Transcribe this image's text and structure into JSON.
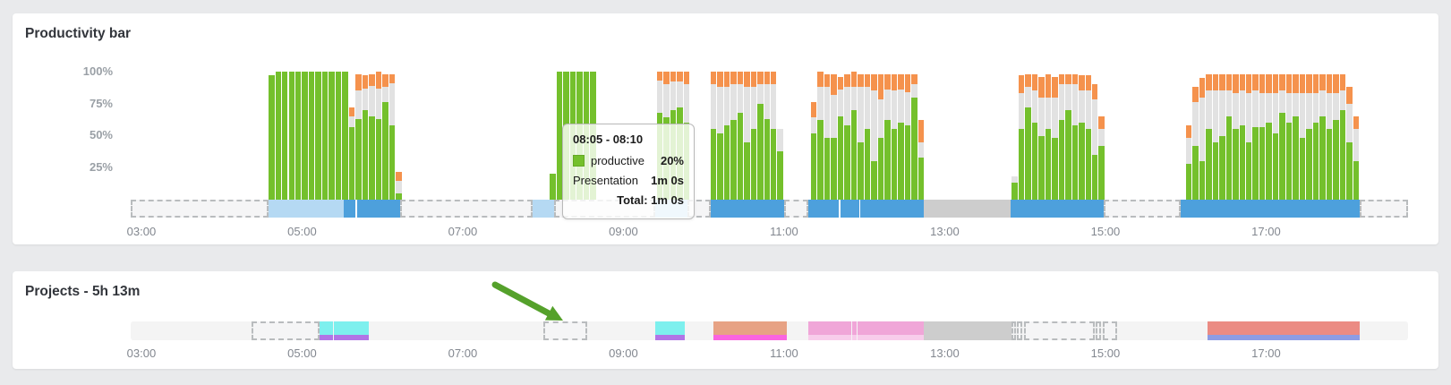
{
  "page_bg": "#e9eaec",
  "colors": {
    "productive_green": "#74c02c",
    "neutral_gray": "#e2e2e2",
    "distracting_orange": "#f5924d",
    "strip_light_blue": "#b5d9f3",
    "strip_blue": "#4da0dc",
    "strip_gray": "#cdcdcd",
    "cyan": "#7df0ee",
    "purple": "#b175e6",
    "salmon": "#e7a284",
    "magenta": "#fa64e0",
    "pink": "#f0a6d8",
    "pink_light": "#f8cdeb",
    "red": "#eb8b83",
    "periwinkle": "#8d9ce4",
    "arrow_green": "#55a12b"
  },
  "productivity_panel": {
    "title": "Productivity bar",
    "y_ticks": [
      "100%",
      "75%",
      "50%",
      "25%"
    ],
    "tooltip": {
      "title": "08:05 - 08:10",
      "productive_label": "productive",
      "productive_value": "20%",
      "app_label": "Presentation",
      "app_value": "1m 0s",
      "total_text": "Total: 1m 0s"
    }
  },
  "projects_panel": {
    "title": "Projects - 5h 13m"
  },
  "chart_data": [
    {
      "type": "bar",
      "title": "Productivity bar",
      "x_range": [
        "02:52",
        "18:46"
      ],
      "slot_minutes": 5,
      "ylim": [
        0,
        100
      ],
      "y_ticks": [
        "100%",
        "75%",
        "50%",
        "25%"
      ],
      "x_ticks": [
        "03:00",
        "05:00",
        "07:00",
        "09:00",
        "11:00",
        "13:00",
        "15:00",
        "17:00"
      ],
      "series_colors": {
        "productive": "#74c02c",
        "neutral": "#e2e2e2",
        "distracting": "#f5924d"
      },
      "bars": [
        [
          "04:35",
          97,
          0,
          0
        ],
        [
          "04:40",
          100,
          0,
          0
        ],
        [
          "04:45",
          100,
          0,
          0
        ],
        [
          "04:50",
          100,
          0,
          0
        ],
        [
          "04:55",
          100,
          0,
          0
        ],
        [
          "05:00",
          100,
          0,
          0
        ],
        [
          "05:05",
          100,
          0,
          0
        ],
        [
          "05:10",
          100,
          0,
          0
        ],
        [
          "05:15",
          100,
          0,
          0
        ],
        [
          "05:20",
          100,
          0,
          0
        ],
        [
          "05:25",
          100,
          0,
          0
        ],
        [
          "05:30",
          100,
          0,
          0
        ],
        [
          "05:35",
          57,
          8,
          7
        ],
        [
          "05:40",
          63,
          22,
          13
        ],
        [
          "05:45",
          70,
          17,
          10
        ],
        [
          "05:50",
          65,
          24,
          9
        ],
        [
          "05:55",
          63,
          24,
          13
        ],
        [
          "06:00",
          76,
          12,
          10
        ],
        [
          "06:05",
          58,
          33,
          7
        ],
        [
          "06:10",
          5,
          10,
          7
        ],
        [
          "08:05",
          20,
          0,
          0
        ],
        [
          "08:10",
          100,
          0,
          0
        ],
        [
          "08:15",
          100,
          0,
          0
        ],
        [
          "08:20",
          100,
          0,
          0
        ],
        [
          "08:25",
          100,
          0,
          0
        ],
        [
          "08:30",
          100,
          0,
          0
        ],
        [
          "08:35",
          100,
          0,
          0
        ],
        [
          "09:25",
          68,
          25,
          7
        ],
        [
          "09:30",
          64,
          26,
          10
        ],
        [
          "09:35",
          70,
          22,
          8
        ],
        [
          "09:40",
          72,
          20,
          8
        ],
        [
          "09:45",
          60,
          30,
          10
        ],
        [
          "10:05",
          55,
          35,
          10
        ],
        [
          "10:10",
          52,
          36,
          12
        ],
        [
          "10:15",
          58,
          30,
          12
        ],
        [
          "10:20",
          62,
          28,
          10
        ],
        [
          "10:25",
          68,
          22,
          10
        ],
        [
          "10:30",
          45,
          43,
          12
        ],
        [
          "10:35",
          55,
          33,
          12
        ],
        [
          "10:40",
          75,
          15,
          10
        ],
        [
          "10:45",
          63,
          27,
          10
        ],
        [
          "10:50",
          55,
          35,
          10
        ],
        [
          "10:55",
          38,
          17,
          0
        ],
        [
          "11:20",
          52,
          12,
          12
        ],
        [
          "11:25",
          62,
          26,
          12
        ],
        [
          "11:30",
          48,
          40,
          10
        ],
        [
          "11:35",
          48,
          34,
          16
        ],
        [
          "11:40",
          65,
          21,
          10
        ],
        [
          "11:45",
          58,
          30,
          10
        ],
        [
          "11:50",
          70,
          18,
          12
        ],
        [
          "11:55",
          45,
          43,
          10
        ],
        [
          "12:00",
          55,
          33,
          10
        ],
        [
          "12:05",
          30,
          55,
          13
        ],
        [
          "12:10",
          48,
          30,
          20
        ],
        [
          "12:15",
          62,
          24,
          12
        ],
        [
          "12:20",
          55,
          30,
          13
        ],
        [
          "12:25",
          60,
          26,
          12
        ],
        [
          "12:30",
          58,
          26,
          14
        ],
        [
          "12:35",
          80,
          10,
          8
        ],
        [
          "12:40",
          33,
          12,
          17
        ],
        [
          "13:50",
          13,
          5,
          0
        ],
        [
          "13:55",
          55,
          28,
          14
        ],
        [
          "14:00",
          72,
          16,
          10
        ],
        [
          "14:05",
          60,
          25,
          13
        ],
        [
          "14:10",
          50,
          30,
          16
        ],
        [
          "14:15",
          55,
          25,
          18
        ],
        [
          "14:20",
          48,
          32,
          16
        ],
        [
          "14:25",
          62,
          28,
          8
        ],
        [
          "14:30",
          70,
          20,
          8
        ],
        [
          "14:35",
          58,
          32,
          8
        ],
        [
          "14:40",
          60,
          25,
          12
        ],
        [
          "14:45",
          55,
          30,
          12
        ],
        [
          "14:50",
          35,
          43,
          12
        ],
        [
          "14:55",
          42,
          13,
          10
        ],
        [
          "16:00",
          28,
          20,
          10
        ],
        [
          "16:05",
          42,
          34,
          12
        ],
        [
          "16:10",
          30,
          50,
          15
        ],
        [
          "16:15",
          55,
          30,
          13
        ],
        [
          "16:20",
          45,
          40,
          13
        ],
        [
          "16:25",
          50,
          35,
          13
        ],
        [
          "16:30",
          65,
          20,
          13
        ],
        [
          "16:35",
          55,
          28,
          15
        ],
        [
          "16:40",
          58,
          27,
          13
        ],
        [
          "16:45",
          45,
          38,
          15
        ],
        [
          "16:50",
          57,
          28,
          13
        ],
        [
          "16:55",
          57,
          26,
          15
        ],
        [
          "17:00",
          60,
          23,
          15
        ],
        [
          "17:05",
          52,
          31,
          15
        ],
        [
          "17:10",
          68,
          17,
          13
        ],
        [
          "17:15",
          60,
          23,
          15
        ],
        [
          "17:20",
          65,
          18,
          15
        ],
        [
          "17:25",
          48,
          35,
          15
        ],
        [
          "17:30",
          55,
          28,
          15
        ],
        [
          "17:35",
          60,
          23,
          15
        ],
        [
          "17:40",
          65,
          20,
          13
        ],
        [
          "17:45",
          55,
          28,
          15
        ],
        [
          "17:50",
          62,
          21,
          15
        ],
        [
          "17:55",
          70,
          15,
          13
        ],
        [
          "18:00",
          45,
          30,
          13
        ],
        [
          "18:05",
          30,
          25,
          10
        ]
      ],
      "strip_segments": [
        {
          "start": "02:52",
          "end": "04:35",
          "style": "dashed"
        },
        {
          "start": "04:35",
          "end": "05:31",
          "style": "fill",
          "color": "#b5d9f3"
        },
        {
          "start": "05:31",
          "end": "05:40",
          "style": "fill",
          "color": "#4da0dc"
        },
        {
          "start": "05:41",
          "end": "06:13",
          "style": "fill",
          "color": "#4da0dc"
        },
        {
          "start": "06:13",
          "end": "07:52",
          "style": "dashed"
        },
        {
          "start": "07:52",
          "end": "08:08",
          "style": "fill",
          "color": "#b5d9f3"
        },
        {
          "start": "08:08",
          "end": "09:24",
          "style": "dashed"
        },
        {
          "start": "09:24",
          "end": "09:48",
          "style": "fill",
          "color": "#b5d9f3"
        },
        {
          "start": "09:48",
          "end": "10:05",
          "style": "dashed"
        },
        {
          "start": "10:05",
          "end": "11:00",
          "style": "fill",
          "color": "#4da0dc"
        },
        {
          "start": "11:00",
          "end": "11:18",
          "style": "dashed"
        },
        {
          "start": "11:18",
          "end": "11:41",
          "style": "fill",
          "color": "#4da0dc"
        },
        {
          "start": "11:42",
          "end": "11:56",
          "style": "fill",
          "color": "#4da0dc"
        },
        {
          "start": "11:57",
          "end": "12:44",
          "style": "fill",
          "color": "#4da0dc"
        },
        {
          "start": "12:44",
          "end": "13:49",
          "style": "fill",
          "color": "#cdcdcd"
        },
        {
          "start": "13:49",
          "end": "14:59",
          "style": "fill",
          "color": "#4da0dc"
        },
        {
          "start": "14:59",
          "end": "15:56",
          "style": "dashed"
        },
        {
          "start": "15:56",
          "end": "18:10",
          "style": "fill",
          "color": "#4da0dc"
        },
        {
          "start": "18:10",
          "end": "18:46",
          "style": "dashed"
        }
      ]
    },
    {
      "type": "timeline",
      "title": "Projects - 5h 13m",
      "x_range": [
        "02:52",
        "18:46"
      ],
      "x_ticks": [
        "03:00",
        "05:00",
        "07:00",
        "09:00",
        "11:00",
        "13:00",
        "15:00",
        "17:00"
      ],
      "segments": [
        {
          "start": "04:22",
          "end": "05:13",
          "style": "dashed"
        },
        {
          "start": "05:13",
          "end": "05:23",
          "style": "fill",
          "color": "#7df0ee",
          "bottom": "#b175e6"
        },
        {
          "start": "05:24",
          "end": "05:50",
          "style": "fill",
          "color": "#7df0ee",
          "bottom": "#b175e6"
        },
        {
          "start": "08:00",
          "end": "08:33",
          "style": "dashed"
        },
        {
          "start": "09:24",
          "end": "09:46",
          "style": "fill",
          "color": "#7df0ee",
          "bottom": "#b175e6"
        },
        {
          "start": "10:07",
          "end": "11:02",
          "style": "fill",
          "color": "#e7a284",
          "bottom": "#fa64e0"
        },
        {
          "start": "11:18",
          "end": "11:50",
          "style": "fill",
          "color": "#f0a6d8",
          "bottom": "#f8cdeb"
        },
        {
          "start": "11:51",
          "end": "11:54",
          "style": "fill",
          "color": "#f0a6d8",
          "bottom": "#f8cdeb"
        },
        {
          "start": "11:55",
          "end": "12:44",
          "style": "fill",
          "color": "#f0a6d8",
          "bottom": "#f8cdeb"
        },
        {
          "start": "12:44",
          "end": "13:50",
          "style": "fill",
          "color": "#cdcdcd"
        },
        {
          "start": "13:50",
          "end": "13:53",
          "style": "dashed"
        },
        {
          "start": "13:54",
          "end": "13:58",
          "style": "dashed"
        },
        {
          "start": "13:59",
          "end": "14:52",
          "style": "dashed"
        },
        {
          "start": "14:53",
          "end": "14:57",
          "style": "dashed"
        },
        {
          "start": "14:58",
          "end": "15:09",
          "style": "dashed"
        },
        {
          "start": "16:16",
          "end": "18:10",
          "style": "fill",
          "color": "#eb8b83",
          "bottom": "#8d9ce4"
        }
      ]
    }
  ]
}
